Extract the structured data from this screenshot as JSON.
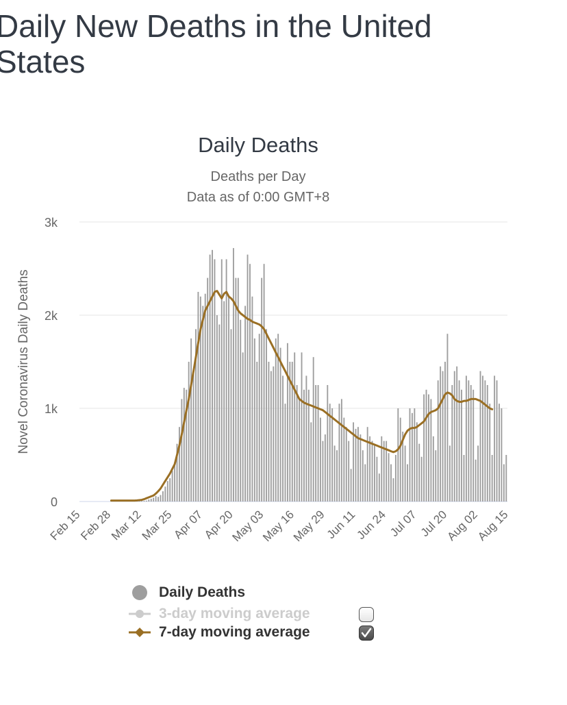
{
  "page": {
    "title": "Daily New Deaths in the United States"
  },
  "chart_data": {
    "type": "bar",
    "title": "Daily Deaths",
    "subtitle_lines": [
      "Deaths per Day",
      "Data as of 0:00 GMT+8"
    ],
    "ylabel": "Novel Coronavirus Daily Deaths",
    "xlabel": "",
    "ylim": [
      0,
      3000
    ],
    "y_ticks": [
      {
        "value": 0,
        "label": "0"
      },
      {
        "value": 1000,
        "label": "1k"
      },
      {
        "value": 2000,
        "label": "2k"
      },
      {
        "value": 3000,
        "label": "3k"
      }
    ],
    "x_ticks": [
      {
        "day": 0,
        "label": "Feb 15"
      },
      {
        "day": 13,
        "label": "Feb 28"
      },
      {
        "day": 26,
        "label": "Mar 12"
      },
      {
        "day": 39,
        "label": "Mar 25"
      },
      {
        "day": 52,
        "label": "Apr 07"
      },
      {
        "day": 65,
        "label": "Apr 20"
      },
      {
        "day": 78,
        "label": "May 03"
      },
      {
        "day": 91,
        "label": "May 16"
      },
      {
        "day": 104,
        "label": "May 29"
      },
      {
        "day": 117,
        "label": "Jun 11"
      },
      {
        "day": 130,
        "label": "Jun 24"
      },
      {
        "day": 143,
        "label": "Jul 07"
      },
      {
        "day": 156,
        "label": "Jul 20"
      },
      {
        "day": 169,
        "label": "Aug 02"
      },
      {
        "day": 182,
        "label": "Aug 15"
      }
    ],
    "x_start": "Feb 15",
    "grid": true,
    "series": [
      {
        "name": "Daily Deaths",
        "kind": "bar",
        "color": "#9e9e9e",
        "values": [
          0,
          0,
          0,
          0,
          0,
          0,
          0,
          0,
          0,
          0,
          0,
          0,
          0,
          0,
          0,
          1,
          1,
          1,
          0,
          2,
          1,
          2,
          3,
          4,
          5,
          8,
          10,
          8,
          10,
          22,
          30,
          41,
          60,
          50,
          70,
          110,
          160,
          220,
          250,
          330,
          420,
          620,
          800,
          1100,
          1220,
          1200,
          1500,
          1750,
          1400,
          1850,
          2250,
          2200,
          2100,
          2230,
          2400,
          2650,
          2700,
          2600,
          2000,
          1900,
          2600,
          2150,
          2600,
          2200,
          1850,
          2720,
          2400,
          2400,
          1950,
          1600,
          2100,
          2650,
          2550,
          2200,
          1750,
          1500,
          1800,
          2400,
          2550,
          1850,
          1500,
          1400,
          1450,
          1750,
          1800,
          1650,
          1350,
          1050,
          1700,
          1500,
          1500,
          1600,
          1250,
          1100,
          1600,
          1200,
          1350,
          1200,
          850,
          1550,
          1250,
          1250,
          900,
          650,
          720,
          1250,
          1050,
          1000,
          600,
          550,
          1050,
          1100,
          900,
          800,
          650,
          350,
          850,
          780,
          800,
          720,
          550,
          400,
          800,
          700,
          650,
          600,
          480,
          300,
          700,
          650,
          650,
          520,
          400,
          250,
          500,
          1000,
          900,
          750,
          600,
          400,
          1000,
          950,
          1000,
          850,
          620,
          480,
          1150,
          1200,
          1150,
          1100,
          700,
          550,
          1300,
          1450,
          1400,
          1500,
          1800,
          600,
          1250,
          1400,
          1450,
          1300,
          1200,
          500,
          1350,
          1300,
          1250,
          1200,
          450,
          600,
          1400,
          1350,
          1300,
          1250,
          1050,
          500,
          1350,
          1300,
          1050,
          1000,
          400,
          500
        ]
      },
      {
        "name": "3-day moving average",
        "kind": "line",
        "color": "#c8c8c8",
        "visible": false,
        "values": []
      },
      {
        "name": "7-day moving average",
        "kind": "line",
        "color": "#9a6f24",
        "visible": true,
        "start_day": 13,
        "values": [
          10,
          10,
          10,
          10,
          10,
          10,
          10,
          10,
          10,
          10,
          10,
          12,
          15,
          18,
          25,
          35,
          45,
          55,
          65,
          85,
          110,
          140,
          180,
          220,
          260,
          300,
          350,
          400,
          500,
          600,
          720,
          850,
          980,
          1100,
          1250,
          1400,
          1550,
          1700,
          1850,
          1950,
          2050,
          2100,
          2150,
          2200,
          2250,
          2260,
          2220,
          2180,
          2230,
          2250,
          2200,
          2180,
          2150,
          2100,
          2050,
          2020,
          2000,
          1980,
          1960,
          1950,
          1930,
          1920,
          1910,
          1900,
          1880,
          1850,
          1800,
          1750,
          1700,
          1650,
          1600,
          1550,
          1500,
          1450,
          1400,
          1350,
          1300,
          1250,
          1200,
          1150,
          1100,
          1080,
          1060,
          1050,
          1040,
          1030,
          1020,
          1010,
          1000,
          990,
          980,
          960,
          940,
          920,
          900,
          880,
          860,
          840,
          820,
          800,
          780,
          760,
          740,
          720,
          700,
          680,
          670,
          660,
          650,
          640,
          630,
          620,
          610,
          600,
          590,
          580,
          570,
          560,
          550,
          540,
          530,
          540,
          560,
          600,
          660,
          720,
          760,
          780,
          790,
          790,
          800,
          820,
          840,
          860,
          900,
          940,
          960,
          970,
          980,
          1000,
          1050,
          1100,
          1150,
          1170,
          1160,
          1140,
          1100,
          1080,
          1070,
          1070,
          1080,
          1080,
          1090,
          1100,
          1100,
          1100,
          1090,
          1080,
          1060,
          1040,
          1020,
          1000,
          990
        ]
      }
    ]
  },
  "legend": {
    "items": [
      {
        "label": "Daily Deaths",
        "color": "#333333",
        "marker_color": "#9e9e9e",
        "marker": "circle",
        "checkbox": false
      },
      {
        "label": "3-day moving average",
        "color": "#cccccc",
        "marker_color": "#cccccc",
        "marker": "line-circle",
        "checkbox": true,
        "checked": false
      },
      {
        "label": "7-day moving average",
        "color": "#333333",
        "marker_color": "#9a6f24",
        "marker": "line-diamond",
        "checkbox": true,
        "checked": true
      }
    ]
  }
}
